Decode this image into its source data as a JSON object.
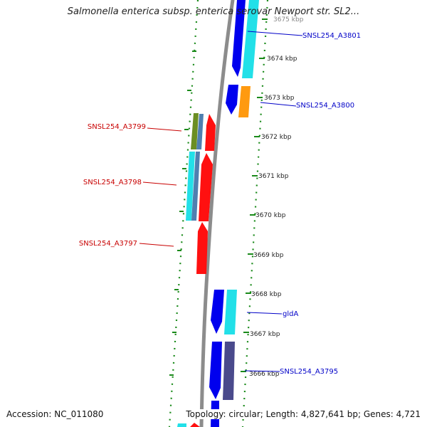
{
  "title": "Salmonella enterica subsp. enterica serovar Newport str. SL2...",
  "footer": {
    "accession": "Accession: NC_011080",
    "summary": "Topology: circular; Length: 4,827,641 bp; Genes: 4,721"
  },
  "colors": {
    "forward_label": "#0000c8",
    "reverse_label": "#c80000",
    "backbone": "#8c8c8c",
    "tick": "#1a8a1a",
    "blue": "#0000ee",
    "cyan": "#22e0e8",
    "red": "#ff1010",
    "orange": "#ff9a10",
    "olive": "#6b8e23",
    "steel": "#4f7fb0",
    "slate": "#4a4a8c"
  },
  "scale_labels": [
    "3675 kbp",
    "3674 kbp",
    "3673 kbp",
    "3672 kbp",
    "3671 kbp",
    "3670 kbp",
    "3669 kbp",
    "3668 kbp",
    "3667 kbp",
    "3666 kbp"
  ],
  "gene_labels": [
    {
      "text": "SNSL254_A3801",
      "strand": "forward"
    },
    {
      "text": "SNSL254_A3800",
      "strand": "forward"
    },
    {
      "text": "SNSL254_A3799",
      "strand": "reverse"
    },
    {
      "text": "SNSL254_A3798",
      "strand": "reverse"
    },
    {
      "text": "SNSL254_A3797",
      "strand": "reverse"
    },
    {
      "text": "gldA",
      "strand": "forward"
    },
    {
      "text": "SNSL254_A3795",
      "strand": "forward"
    }
  ]
}
